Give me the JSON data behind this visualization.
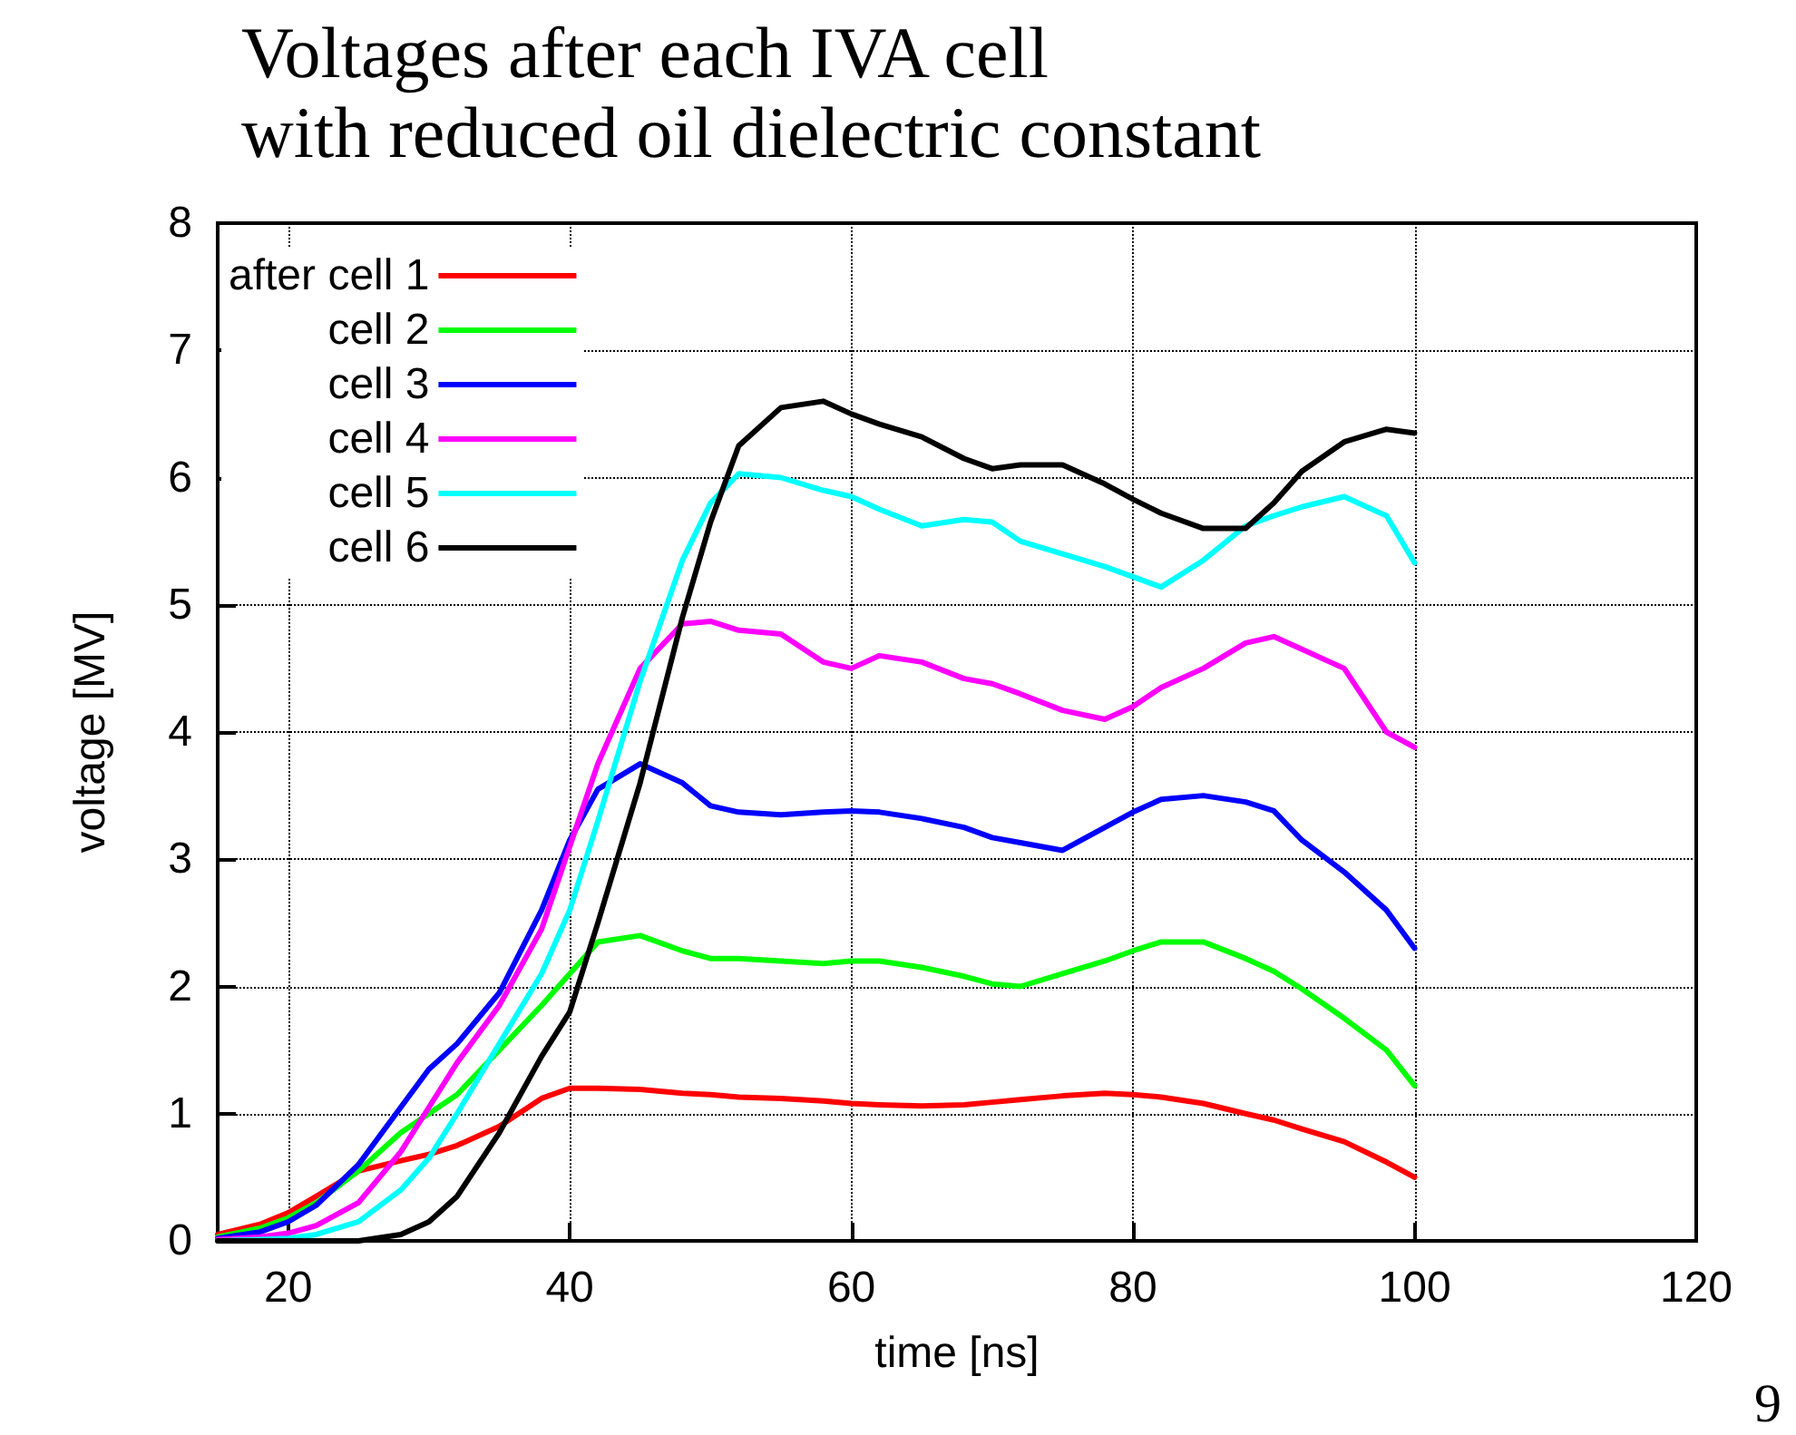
{
  "chart_data": {
    "type": "line",
    "title": "Voltages after each IVA cell\nwith reduced oil dielectric constant",
    "xlabel": "time [ns]",
    "ylabel": "voltage [MV]",
    "x": [
      15,
      18,
      20,
      22,
      25,
      28,
      30,
      32,
      35,
      38,
      40,
      42,
      45,
      48,
      50,
      52,
      55,
      58,
      60,
      62,
      65,
      68,
      70,
      72,
      75,
      78,
      80,
      82,
      85,
      88,
      90,
      92,
      95,
      98,
      100
    ],
    "series": [
      {
        "name": "after cell 1",
        "color": "#ff0000",
        "values": [
          0.05,
          0.13,
          0.22,
          0.35,
          0.55,
          0.63,
          0.68,
          0.75,
          0.9,
          1.12,
          1.2,
          1.2,
          1.19,
          1.16,
          1.15,
          1.13,
          1.12,
          1.1,
          1.08,
          1.07,
          1.06,
          1.07,
          1.09,
          1.11,
          1.14,
          1.16,
          1.15,
          1.13,
          1.08,
          1.0,
          0.95,
          0.88,
          0.78,
          0.62,
          0.5
        ]
      },
      {
        "name": "cell 2",
        "color": "#00ff00",
        "values": [
          0.03,
          0.1,
          0.18,
          0.3,
          0.55,
          0.85,
          1.0,
          1.15,
          1.5,
          1.85,
          2.1,
          2.35,
          2.4,
          2.28,
          2.22,
          2.22,
          2.2,
          2.18,
          2.2,
          2.2,
          2.15,
          2.08,
          2.02,
          2.0,
          2.1,
          2.2,
          2.28,
          2.35,
          2.35,
          2.22,
          2.12,
          1.98,
          1.75,
          1.5,
          1.22
        ]
      },
      {
        "name": "cell 3",
        "color": "#0000ff",
        "values": [
          0.02,
          0.07,
          0.15,
          0.28,
          0.6,
          1.05,
          1.35,
          1.55,
          1.95,
          2.6,
          3.15,
          3.55,
          3.75,
          3.6,
          3.42,
          3.37,
          3.35,
          3.37,
          3.38,
          3.37,
          3.32,
          3.25,
          3.17,
          3.13,
          3.07,
          3.25,
          3.37,
          3.47,
          3.5,
          3.45,
          3.38,
          3.15,
          2.9,
          2.6,
          2.3
        ]
      },
      {
        "name": "cell 4",
        "color": "#ff00ff",
        "values": [
          0.01,
          0.03,
          0.06,
          0.12,
          0.3,
          0.7,
          1.05,
          1.4,
          1.85,
          2.45,
          3.1,
          3.75,
          4.5,
          4.85,
          4.87,
          4.8,
          4.77,
          4.55,
          4.5,
          4.6,
          4.55,
          4.42,
          4.38,
          4.3,
          4.17,
          4.1,
          4.2,
          4.35,
          4.5,
          4.7,
          4.75,
          4.65,
          4.5,
          4.0,
          3.88
        ]
      },
      {
        "name": "cell 5",
        "color": "#00ffff",
        "values": [
          0,
          0.01,
          0.02,
          0.05,
          0.15,
          0.4,
          0.65,
          1.0,
          1.55,
          2.1,
          2.6,
          3.3,
          4.4,
          5.35,
          5.8,
          6.03,
          6.0,
          5.9,
          5.85,
          5.75,
          5.62,
          5.67,
          5.65,
          5.5,
          5.4,
          5.3,
          5.22,
          5.14,
          5.35,
          5.62,
          5.7,
          5.77,
          5.85,
          5.7,
          5.33
        ]
      },
      {
        "name": "cell 6",
        "color": "#000000",
        "values": [
          0,
          0,
          0,
          0,
          0,
          0.05,
          0.15,
          0.35,
          0.85,
          1.45,
          1.8,
          2.5,
          3.6,
          4.9,
          5.65,
          6.25,
          6.55,
          6.6,
          6.5,
          6.42,
          6.32,
          6.15,
          6.07,
          6.1,
          6.1,
          5.95,
          5.83,
          5.72,
          5.6,
          5.6,
          5.8,
          6.05,
          6.28,
          6.38,
          6.35
        ]
      }
    ],
    "xlim": [
      15,
      120
    ],
    "xticks": [
      20,
      40,
      60,
      80,
      100,
      120
    ],
    "ylim": [
      0,
      8
    ],
    "yticks": [
      0,
      1,
      2,
      3,
      4,
      5,
      6,
      7,
      8
    ],
    "grid": true,
    "legend": "top left",
    "marker": "none",
    "line_style": "solid",
    "annotations": [
      "9"
    ]
  }
}
